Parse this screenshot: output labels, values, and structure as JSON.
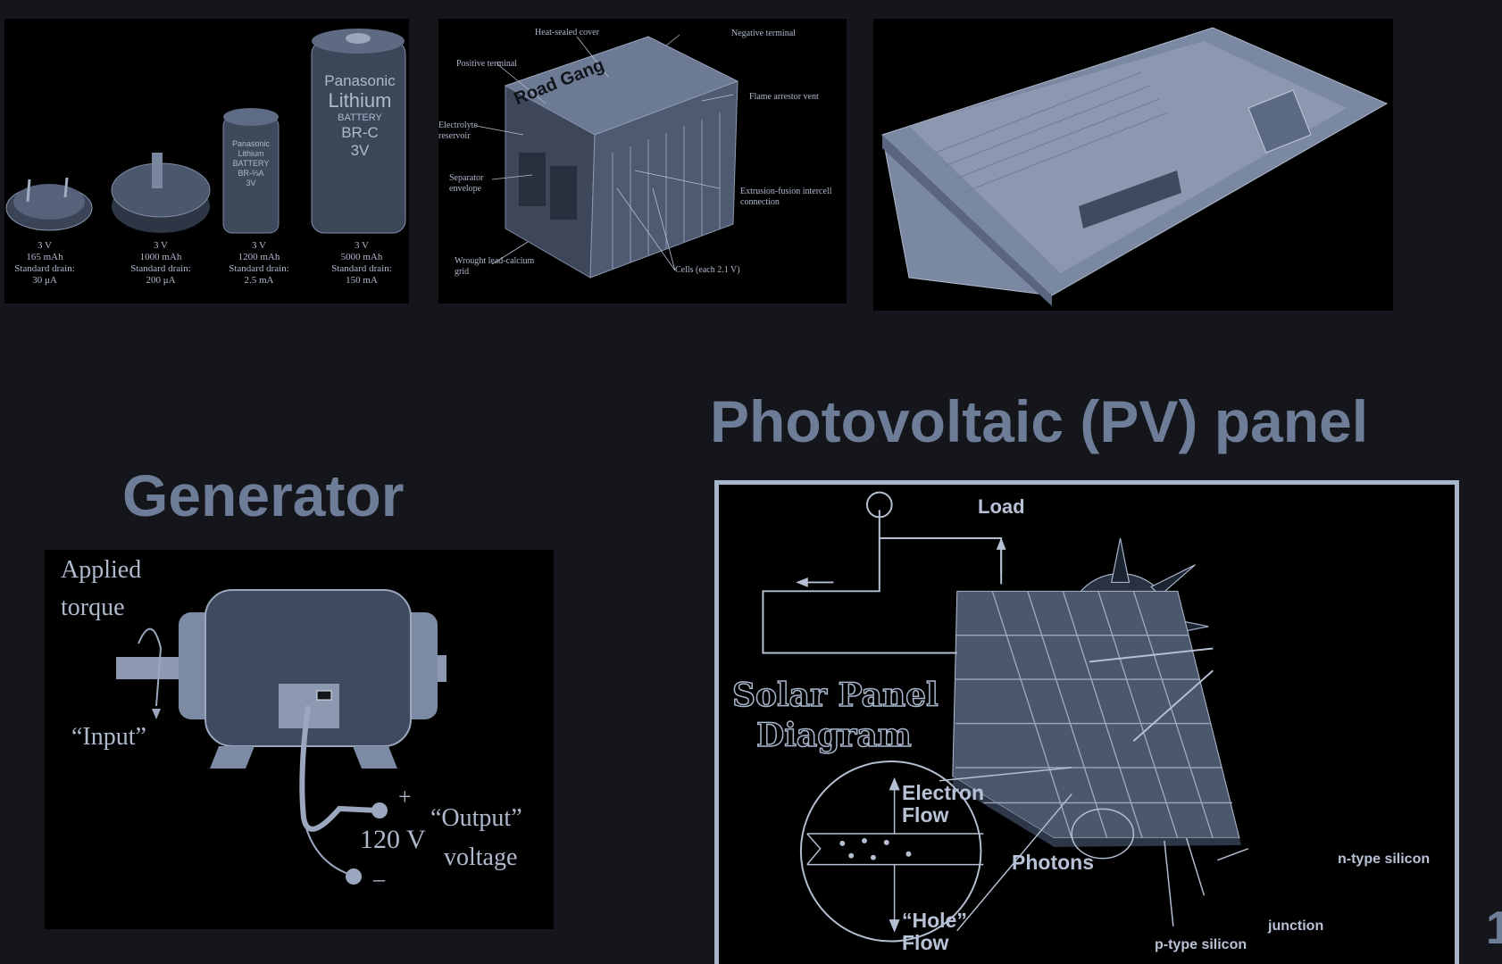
{
  "coin_cells": {
    "cells": [
      {
        "voltage": "3 V",
        "capacity": "165 mAh",
        "drain_label": "Standard drain:",
        "drain": "30 μA"
      },
      {
        "voltage": "3 V",
        "capacity": "1000 mAh",
        "drain_label": "Standard drain:",
        "drain": "200 μA"
      },
      {
        "voltage": "3 V",
        "capacity": "1200 mAh",
        "drain_label": "Standard drain:",
        "drain": "2.5 mA"
      },
      {
        "voltage": "3 V",
        "capacity": "5000 mAh",
        "drain_label": "Standard drain:",
        "drain": "150 mA"
      }
    ],
    "small_cell_text": [
      "Panasonic",
      "Lithium",
      "BATTERY",
      "BR-⅔A",
      "3V"
    ],
    "big_cell_text": [
      "Panasonic",
      "Lithium",
      "BATTERY",
      "BR-C",
      "3V"
    ]
  },
  "lead_acid": {
    "brand": "Road Gang",
    "labels": {
      "cover": "Heat-sealed cover",
      "neg": "Negative terminal",
      "pos": "Positive terminal",
      "flame": "Flame arrestor vent",
      "electrolyte": "Electrolyte reservoir",
      "separator": "Separator envelope",
      "extrusion": "Extrusion-fusion intercell connection",
      "grid": "Wrought lead-calcium grid",
      "cells": "Cells (each 2.1 V)"
    }
  },
  "titles": {
    "generator": "Generator",
    "pv": "Photovoltaic (PV) panel"
  },
  "generator": {
    "applied": "Applied",
    "torque": "torque",
    "input": "“Input”",
    "plus": "+",
    "minus": "–",
    "volts": "120 V",
    "output": "“Output”",
    "voltage": "voltage"
  },
  "solar": {
    "load": "Load",
    "heading_1": "Solar Panel",
    "heading_2": "Diagram",
    "electron_1": "Electron",
    "electron_2": "Flow",
    "photons": "Photons",
    "hole_1": "“Hole”",
    "hole_2": "Flow",
    "n_type": "n-type silicon",
    "junction": "junction",
    "p_type": "p-type silicon"
  },
  "colors": {
    "background": "#14161c",
    "title": "#6e7d97",
    "frame": "#a8b6cc"
  },
  "page_fragment": "1"
}
